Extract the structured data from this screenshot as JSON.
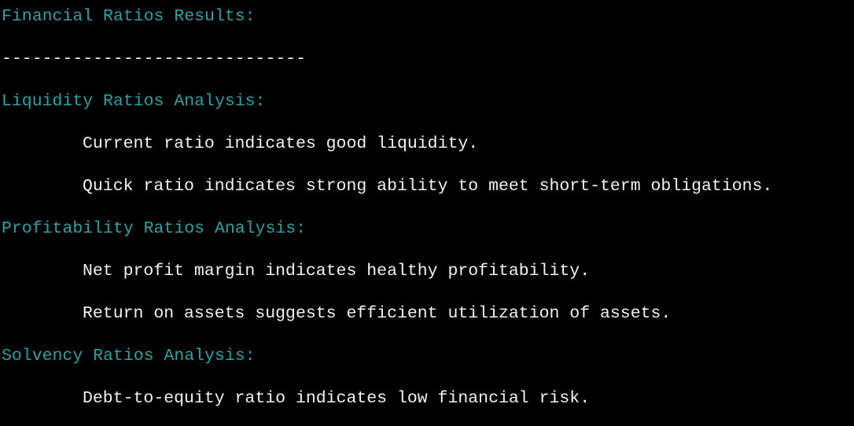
{
  "terminal": {
    "title_line": "Financial Ratios Results:",
    "separator": "------------------------------",
    "sections": [
      {
        "heading": "Liquidity Ratios Analysis:",
        "items": [
          "Current ratio indicates good liquidity.",
          "Quick ratio indicates strong ability to meet short-term obligations."
        ]
      },
      {
        "heading": "Profitability Ratios Analysis:",
        "items": [
          "Net profit margin indicates healthy profitability.",
          "Return on assets suggests efficient utilization of assets."
        ]
      },
      {
        "heading": "Solvency Ratios Analysis:",
        "items": [
          "Debt-to-equity ratio indicates low financial risk."
        ]
      }
    ]
  },
  "colors": {
    "background": "#000000",
    "heading": "#2aa1a3",
    "text": "#f2f2f2"
  }
}
